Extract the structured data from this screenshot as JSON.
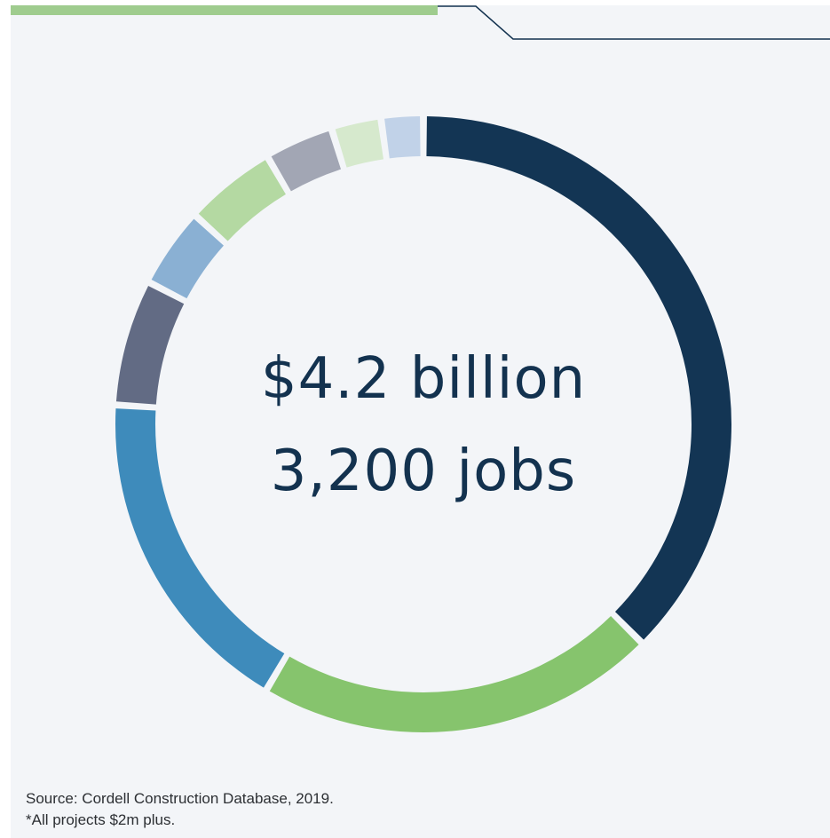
{
  "chart_data": {
    "type": "pie",
    "style": "donut",
    "title": "",
    "center_text": [
      "$4.2 billion",
      "3,200 jobs"
    ],
    "legend": "none",
    "slices": [
      {
        "share": 37.5,
        "color": "#133554"
      },
      {
        "share": 21.0,
        "color": "#86c46d"
      },
      {
        "share": 17.5,
        "color": "#3e8bbb"
      },
      {
        "share": 6.6,
        "color": "#626b84"
      },
      {
        "share": 4.2,
        "color": "#8ab0d3"
      },
      {
        "share": 4.8,
        "color": "#b4d9a2"
      },
      {
        "share": 3.6,
        "color": "#a2a6b4"
      },
      {
        "share": 2.6,
        "color": "#d6e9cd"
      },
      {
        "share": 2.2,
        "color": "#c1d2e8"
      }
    ]
  },
  "footnotes": {
    "source": "Source: Cordell Construction Database, 2019.",
    "note": "*All projects $2m plus."
  },
  "colors": {
    "background": "#f3f5f8",
    "accent_bar": "#9fcc8e",
    "rule_line": "#13324f",
    "center_text": "#13324f"
  }
}
